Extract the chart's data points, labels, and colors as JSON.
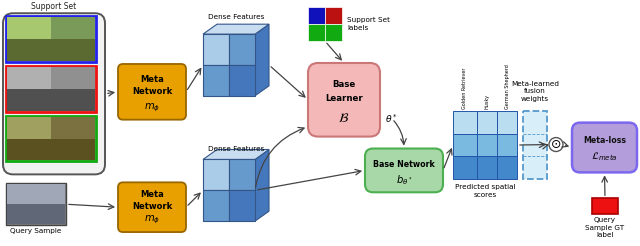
{
  "fig_width": 6.4,
  "fig_height": 2.46,
  "bg_color": "#ffffff",
  "support_set_label": "Support Set",
  "query_sample_label": "Query Sample",
  "dense_features_label": "Dense Features",
  "support_set_labels_title": "Support Set\nlabels",
  "theta_star_label": "$\\theta^*$",
  "predicted_spatial_label": "Predicted spatial\nscores",
  "meta_learned_label": "Meta-learned\nfusion\nweights",
  "query_gt_label": "Query\nSample GT\nlabel",
  "col_labels": [
    "Golden Retriever",
    "Husky",
    "German Shepherd"
  ],
  "meta_network_color": "#E8A000",
  "meta_network_edge": "#996600",
  "base_learner_color": "#F4B8B8",
  "base_learner_edge": "#CC7777",
  "base_network_color": "#A8D8A8",
  "base_network_edge": "#4CAF50",
  "meta_loss_color": "#B39DDB",
  "meta_loss_edge": "#7B68EE",
  "query_gt_color": "#EE1111",
  "border_blue": "#2222EE",
  "border_red": "#EE1111",
  "border_green": "#11AA11",
  "support_container_bg": "#f2f2f2",
  "support_container_edge": "#555555",
  "dense_light": "#AACCE8",
  "dense_mid": "#6699CC",
  "dense_dark": "#4477BB",
  "dense_top": "#C8DDF0",
  "grid_row0": [
    "#BBDDF0",
    "#BBDDF0",
    "#BBDDF0"
  ],
  "grid_row1": [
    "#7BBAE0",
    "#7BBAE0",
    "#7BBAE0"
  ],
  "grid_row2": [
    "#4488CC",
    "#4488CC",
    "#4488CC"
  ],
  "dashed_box_color": "#5599CC",
  "dashed_box_fill": "#D8EEF8",
  "arrow_color": "#444444"
}
